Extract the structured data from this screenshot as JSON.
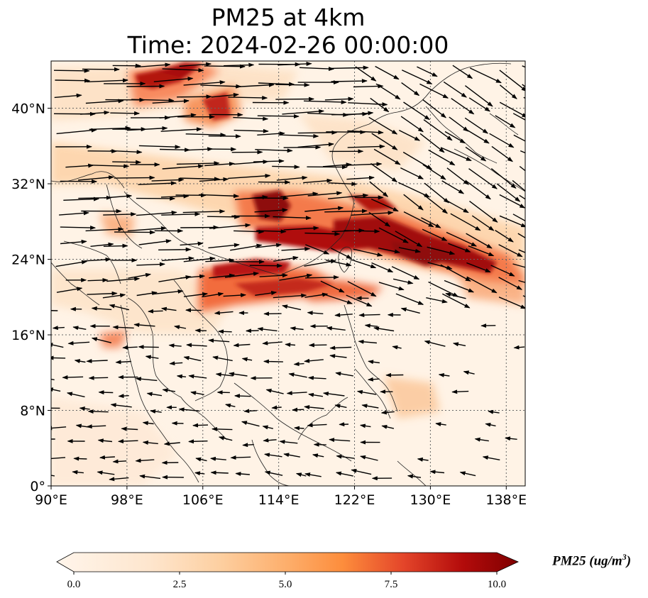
{
  "title": {
    "line1": "PM25 at 4km",
    "line2": "Time: 2024-02-26 00:00:00"
  },
  "map": {
    "lon_range": [
      90,
      140
    ],
    "lat_range": [
      0,
      45
    ],
    "x_ticks": [
      "90°E",
      "98°E",
      "106°E",
      "114°E",
      "122°E",
      "130°E",
      "138°E"
    ],
    "y_ticks": [
      "0°",
      "8°N",
      "16°N",
      "24°N",
      "32°N",
      "40°N"
    ],
    "gridlines": true
  },
  "colorbar": {
    "label_main": "PM25 (ug/m",
    "label_sup": "3",
    "label_end": ")",
    "ticks": [
      "0.0",
      "2.5",
      "5.0",
      "7.5",
      "10.0"
    ],
    "range": [
      0,
      10
    ],
    "extend": "both",
    "colors": [
      "#fff5eb",
      "#fdd0a2",
      "#fd8d3c",
      "#d94801",
      "#a50f15",
      "#67000d"
    ]
  }
}
